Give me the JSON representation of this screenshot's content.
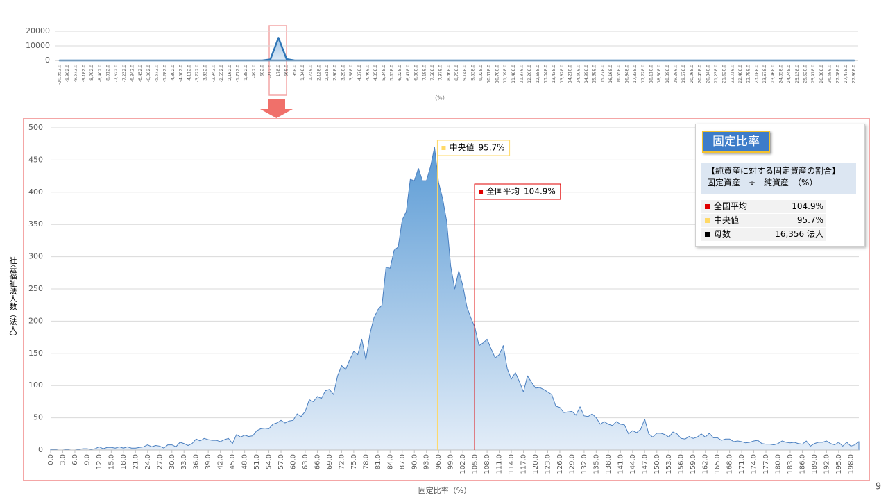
{
  "chart_data": [
    {
      "type": "area",
      "x_label": "（%）",
      "categories": [
        "-10,352.0",
        "-9,962.0",
        "-9,572.0",
        "-9,182.0",
        "-8,792.0",
        "-8,402.0",
        "-8,012.0",
        "-7,622.0",
        "-7,232.0",
        "-6,842.0",
        "-6,452.0",
        "-6,062.0",
        "-5,672.0",
        "-5,282.0",
        "-4,892.0",
        "-4,502.0",
        "-4,112.0",
        "-3,722.0",
        "-3,332.0",
        "-2,942.0",
        "-2,552.0",
        "-2,162.0",
        "-1,772.0",
        "-1,382.0",
        "-992.0",
        "-602.0",
        "-212.0",
        "178.0",
        "568.0",
        "958.0",
        "1,348.0",
        "1,738.0",
        "2,128.0",
        "2,518.0",
        "2,908.0",
        "3,298.0",
        "3,688.0",
        "4,078.0",
        "4,468.0",
        "4,858.0",
        "5,248.0",
        "5,638.0",
        "6,028.0",
        "6,418.0",
        "6,808.0",
        "7,198.0",
        "7,588.0",
        "7,978.0",
        "8,368.0",
        "8,758.0",
        "9,148.0",
        "9,538.0",
        "9,928.0",
        "10,318.0",
        "10,708.0",
        "11,098.0",
        "11,488.0",
        "11,878.0",
        "12,268.0",
        "12,658.0",
        "13,048.0",
        "13,438.0",
        "13,828.0",
        "14,218.0",
        "14,608.0",
        "14,998.0",
        "15,388.0",
        "15,778.0",
        "16,168.0",
        "16,558.0",
        "16,948.0",
        "17,338.0",
        "17,728.0",
        "18,118.0",
        "18,508.0",
        "18,898.0",
        "19,288.0",
        "19,678.0",
        "20,068.0",
        "20,458.0",
        "20,848.0",
        "21,238.0",
        "21,628.0",
        "22,018.0",
        "22,408.0",
        "22,798.0",
        "23,188.0",
        "23,578.0",
        "23,968.0",
        "24,358.0",
        "24,748.0",
        "25,138.0",
        "25,528.0",
        "25,918.0",
        "26,308.0",
        "26,698.0",
        "27,088.0",
        "27,478.0",
        "27,868.0"
      ],
      "values": [
        0,
        0,
        0,
        0,
        0,
        0,
        0,
        0,
        0,
        0,
        0,
        0,
        0,
        0,
        0,
        0,
        0,
        0,
        0,
        0,
        0,
        0,
        0,
        0,
        0,
        0,
        700,
        15500,
        900,
        0,
        0,
        0,
        0,
        0,
        0,
        0,
        0,
        0,
        0,
        0,
        0,
        0,
        0,
        0,
        0,
        0,
        0,
        0,
        0,
        0,
        0,
        0,
        0,
        0,
        0,
        0,
        0,
        0,
        0,
        0,
        0,
        0,
        0,
        0,
        0,
        0,
        0,
        0,
        0,
        0,
        0,
        0,
        0,
        0,
        0,
        0,
        0,
        0,
        0,
        0,
        0,
        0,
        0,
        0,
        0,
        0,
        0,
        0,
        0,
        0,
        0,
        0,
        0,
        0,
        0,
        0,
        0,
        0,
        0
      ],
      "ylim": [
        0,
        20000
      ],
      "yticks": [
        0,
        10000,
        20000
      ],
      "grid": true,
      "color": "#2e75b6"
    },
    {
      "type": "area",
      "x_label": "固定比率（%）",
      "y_label": "社会福祉法人数（法人）",
      "x": [
        0,
        1,
        2,
        3,
        4,
        5,
        6,
        7,
        8,
        9,
        10,
        11,
        12,
        13,
        14,
        15,
        16,
        17,
        18,
        19,
        20,
        21,
        22,
        23,
        24,
        25,
        26,
        27,
        28,
        29,
        30,
        31,
        32,
        33,
        34,
        35,
        36,
        37,
        38,
        39,
        40,
        41,
        42,
        43,
        44,
        45,
        46,
        47,
        48,
        49,
        50,
        51,
        52,
        53,
        54,
        55,
        56,
        57,
        58,
        59,
        60,
        61,
        62,
        63,
        64,
        65,
        66,
        67,
        68,
        69,
        70,
        71,
        72,
        73,
        74,
        75,
        76,
        77,
        78,
        79,
        80,
        81,
        82,
        83,
        84,
        85,
        86,
        87,
        88,
        89,
        90,
        91,
        92,
        93,
        94,
        95,
        96,
        97,
        98,
        99,
        100,
        101,
        102,
        103,
        104,
        105,
        106,
        107,
        108,
        109,
        110,
        111,
        112,
        113,
        114,
        115,
        116,
        117,
        118,
        119,
        120,
        121,
        122,
        123,
        124,
        125,
        126,
        127,
        128,
        129,
        130,
        131,
        132,
        133,
        134,
        135,
        136,
        137,
        138,
        139,
        140,
        141,
        142,
        143,
        144,
        145,
        146,
        147,
        148,
        149,
        150,
        151,
        152,
        153,
        154,
        155,
        156,
        157,
        158,
        159,
        160,
        161,
        162,
        163,
        164,
        165,
        166,
        167,
        168,
        169,
        170,
        171,
        172,
        173,
        174,
        175,
        176,
        177,
        178,
        179,
        180,
        181,
        182,
        183,
        184,
        185,
        186,
        187,
        188,
        189,
        190,
        191,
        192,
        193,
        194,
        195,
        196,
        197,
        198,
        199,
        200
      ],
      "values": [
        1,
        1,
        0,
        0,
        1,
        0,
        0,
        1,
        2,
        2,
        1,
        2,
        5,
        2,
        4,
        4,
        3,
        5,
        3,
        5,
        3,
        3,
        4,
        5,
        8,
        5,
        7,
        6,
        3,
        8,
        8,
        5,
        12,
        10,
        7,
        10,
        17,
        14,
        18,
        16,
        15,
        15,
        13,
        16,
        18,
        10,
        24,
        20,
        23,
        21,
        22,
        30,
        33,
        34,
        33,
        40,
        42,
        46,
        42,
        45,
        46,
        56,
        52,
        60,
        78,
        75,
        83,
        80,
        92,
        94,
        86,
        115,
        131,
        125,
        140,
        153,
        148,
        172,
        140,
        180,
        205,
        218,
        225,
        284,
        282,
        310,
        315,
        357,
        370,
        420,
        418,
        437,
        418,
        418,
        440,
        470,
        415,
        390,
        355,
        285,
        250,
        278,
        255,
        222,
        205,
        190,
        162,
        166,
        172,
        157,
        143,
        148,
        162,
        126,
        110,
        120,
        106,
        90,
        115,
        105,
        96,
        97,
        94,
        90,
        86,
        68,
        66,
        58,
        59,
        60,
        54,
        67,
        53,
        52,
        56,
        50,
        40,
        44,
        40,
        38,
        44,
        40,
        39,
        25,
        30,
        27,
        32,
        48,
        25,
        20,
        26,
        26,
        24,
        20,
        28,
        25,
        18,
        17,
        21,
        18,
        20,
        25,
        20,
        26,
        19,
        19,
        15,
        17,
        17,
        13,
        14,
        13,
        11,
        12,
        14,
        15,
        10,
        9,
        9,
        8,
        10,
        14,
        12,
        11,
        12,
        10,
        9,
        14,
        6,
        10,
        12,
        12,
        14,
        10,
        8,
        12,
        6,
        12,
        6,
        8,
        13
      ],
      "xlim": [
        0,
        200
      ],
      "ylim": [
        0,
        500
      ],
      "xticks": [
        {
          "value": 0,
          "label": "0.0"
        },
        {
          "value": 3,
          "label": "3.0"
        },
        {
          "value": 6,
          "label": "6.0"
        },
        {
          "value": 9,
          "label": "9.0"
        },
        {
          "value": 12,
          "label": "12.0"
        },
        {
          "value": 15,
          "label": "15.0"
        },
        {
          "value": 18,
          "label": "18.0"
        },
        {
          "value": 21,
          "label": "21.0"
        },
        {
          "value": 24,
          "label": "24.0"
        },
        {
          "value": 27,
          "label": "27.0"
        },
        {
          "value": 30,
          "label": "30.0"
        },
        {
          "value": 33,
          "label": "33.0"
        },
        {
          "value": 36,
          "label": "36.0"
        },
        {
          "value": 39,
          "label": "39.0"
        },
        {
          "value": 42,
          "label": "42.0"
        },
        {
          "value": 45,
          "label": "45.0"
        },
        {
          "value": 48,
          "label": "48.0"
        },
        {
          "value": 51,
          "label": "51.0"
        },
        {
          "value": 54,
          "label": "54.0"
        },
        {
          "value": 57,
          "label": "57.0"
        },
        {
          "value": 60,
          "label": "60.0"
        },
        {
          "value": 63,
          "label": "63.0"
        },
        {
          "value": 66,
          "label": "66.0"
        },
        {
          "value": 69,
          "label": "69.0"
        },
        {
          "value": 72,
          "label": "72.0"
        },
        {
          "value": 75,
          "label": "75.0"
        },
        {
          "value": 78,
          "label": "78.0"
        },
        {
          "value": 81,
          "label": "81.0"
        },
        {
          "value": 84,
          "label": "84.0"
        },
        {
          "value": 87,
          "label": "87.0"
        },
        {
          "value": 90,
          "label": "90.0"
        },
        {
          "value": 93,
          "label": "93.0"
        },
        {
          "value": 96,
          "label": "96.0"
        },
        {
          "value": 99,
          "label": "99.0"
        },
        {
          "value": 102,
          "label": "102.0"
        },
        {
          "value": 105,
          "label": "105.0"
        },
        {
          "value": 108,
          "label": "108.0"
        },
        {
          "value": 111,
          "label": "111.0"
        },
        {
          "value": 114,
          "label": "114.0"
        },
        {
          "value": 117,
          "label": "117.0"
        },
        {
          "value": 120,
          "label": "120.0"
        },
        {
          "value": 123,
          "label": "123.0"
        },
        {
          "value": 126,
          "label": "126.0"
        },
        {
          "value": 129,
          "label": "129.0"
        },
        {
          "value": 132,
          "label": "132.0"
        },
        {
          "value": 135,
          "label": "135.0"
        },
        {
          "value": 138,
          "label": "138.0"
        },
        {
          "value": 141,
          "label": "141.0"
        },
        {
          "value": 144,
          "label": "144.0"
        },
        {
          "value": 147,
          "label": "147.0"
        },
        {
          "value": 150,
          "label": "150.0"
        },
        {
          "value": 153,
          "label": "153.0"
        },
        {
          "value": 156,
          "label": "156.0"
        },
        {
          "value": 159,
          "label": "159.0"
        },
        {
          "value": 162,
          "label": "162.0"
        },
        {
          "value": 165,
          "label": "165.0"
        },
        {
          "value": 168,
          "label": "168.0"
        },
        {
          "value": 171,
          "label": "171.0"
        },
        {
          "value": 174,
          "label": "174.0"
        },
        {
          "value": 177,
          "label": "177.0"
        },
        {
          "value": 180,
          "label": "180.0"
        },
        {
          "value": 183,
          "label": "183.0"
        },
        {
          "value": 186,
          "label": "186.0"
        },
        {
          "value": 189,
          "label": "189.0"
        },
        {
          "value": 192,
          "label": "192.0"
        },
        {
          "value": 195,
          "label": "195.0"
        },
        {
          "value": 198,
          "label": "198.0"
        }
      ],
      "yticks": [
        0,
        50,
        100,
        150,
        200,
        250,
        300,
        350,
        400,
        450,
        500
      ],
      "grid": true,
      "color": "#4a7fc0",
      "reference_lines": [
        {
          "name": "中央値",
          "value": 95.7,
          "value_label": "95.7%",
          "color": "#ffd966"
        },
        {
          "name": "全国平均",
          "value": 104.9,
          "value_label": "104.9%",
          "color": "#e00000"
        }
      ]
    }
  ],
  "info_box": {
    "badge": "固定比率",
    "definition": [
      "【純資産に対する固定資産の割合】",
      "固定資産　÷　純資産　（%）"
    ],
    "rows": [
      {
        "marker_color": "#e00000",
        "label": "全国平均",
        "value": "104.9%"
      },
      {
        "marker_color": "#ffd966",
        "label": "中央値",
        "value": "95.7%"
      },
      {
        "marker_color": "#000000",
        "label": "母数",
        "value": "16,356 法人"
      }
    ]
  },
  "page_number": "9"
}
